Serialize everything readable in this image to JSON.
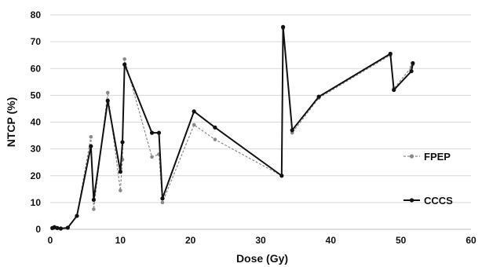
{
  "chart_data": {
    "type": "line",
    "title": "",
    "xlabel": "Dose (Gy)",
    "ylabel": "NTCP (%)",
    "xlim": [
      0,
      60
    ],
    "ylim": [
      0,
      80
    ],
    "xticks": [
      0,
      10,
      20,
      30,
      40,
      50,
      60
    ],
    "yticks": [
      0,
      10,
      20,
      30,
      40,
      50,
      60,
      70,
      80
    ],
    "grid": "horizontal",
    "legend_position": "right",
    "series": [
      {
        "name": "FPEP",
        "color": "#8a8a8a",
        "line_style": "dashed",
        "marker": "circle",
        "x": [
          0.3,
          0.6,
          1.0,
          1.5,
          2.5,
          3.8,
          5.8,
          6.2,
          8.2,
          10.0,
          10.3,
          10.6,
          14.5,
          15.5,
          16.0,
          20.5,
          23.5,
          33.0,
          33.2,
          34.5,
          38.3,
          48.5,
          49.0,
          51.5,
          51.7
        ],
        "y": [
          0.3,
          0.5,
          0.3,
          0.2,
          0.5,
          5.0,
          34.5,
          7.5,
          51.0,
          14.5,
          26.0,
          63.5,
          27.0,
          28.0,
          10.0,
          39.0,
          33.5,
          20.0,
          75.0,
          36.0,
          49.0,
          65.0,
          52.5,
          60.5,
          61.5
        ]
      },
      {
        "name": "CCCS",
        "color": "#111111",
        "line_style": "solid",
        "marker": "circle",
        "x": [
          0.3,
          0.6,
          1.0,
          1.5,
          2.5,
          3.8,
          5.8,
          6.2,
          8.2,
          10.0,
          10.3,
          10.6,
          14.5,
          15.5,
          16.0,
          20.5,
          23.5,
          33.0,
          33.2,
          34.5,
          38.3,
          48.5,
          49.0,
          51.5,
          51.7
        ],
        "y": [
          0.5,
          0.8,
          0.5,
          0.3,
          0.6,
          5.0,
          31.0,
          11.0,
          48.0,
          21.5,
          32.5,
          61.5,
          36.0,
          36.0,
          11.5,
          44.0,
          38.0,
          20.0,
          75.5,
          37.0,
          49.5,
          65.5,
          52.0,
          59.0,
          62.0
        ]
      }
    ]
  }
}
